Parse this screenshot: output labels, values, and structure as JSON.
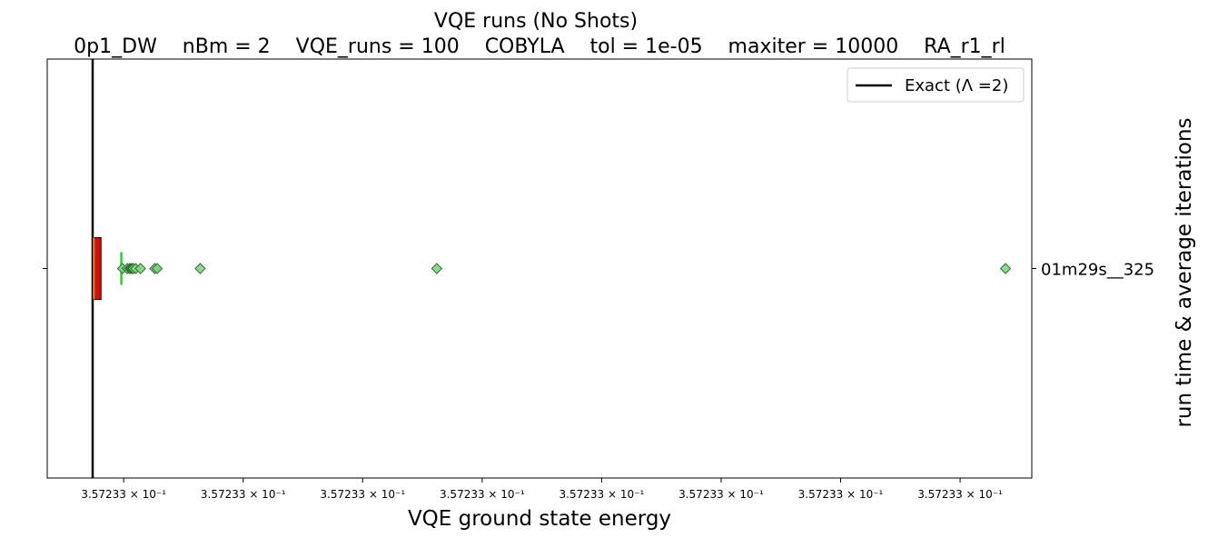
{
  "chart_data": {
    "type": "boxplot",
    "title": "VQE runs (No Shots)",
    "subtitle": "0p1_DW    nBm = 2    VQE_runs = 100    COBYLA    tol = 1e-05    maxiter = 10000    RA_r1_rl",
    "xlabel": "VQE ground state energy",
    "ylabel": "run time & average iterations",
    "xlim": [
      0.36,
      8.6
    ],
    "x_tick_values": [
      1,
      2,
      3,
      4,
      5,
      6,
      7,
      8
    ],
    "x_tick_labels": [
      "3.57233 × 10⁻¹",
      "3.57233 × 10⁻¹",
      "3.57233 × 10⁻¹",
      "3.57233 × 10⁻¹",
      "3.57233 × 10⁻¹",
      "3.57233 × 10⁻¹",
      "3.57233 × 10⁻¹",
      "3.57233 × 10⁻¹"
    ],
    "y_categories": [
      "01m29s__325"
    ],
    "exact_line": {
      "x": 0.74,
      "label": "Exact (Λ =2)",
      "color": "#000000"
    },
    "box": {
      "q1": 0.74,
      "median": 0.75,
      "q3": 0.81,
      "whisker_low": 0.74,
      "whisker_high": 0.81,
      "mean": 0.98,
      "fill_color": "#cc1111",
      "median_color": "#ff7f0e",
      "mean_color": "#33cc33"
    },
    "outliers": [
      0.99,
      1.03,
      1.05,
      1.06,
      1.07,
      1.08,
      1.1,
      1.14,
      1.26,
      1.28,
      1.64,
      3.62,
      8.38
    ],
    "outlier_color": "#7fd67f",
    "legend": {
      "position": "upper right"
    },
    "grid": false
  }
}
